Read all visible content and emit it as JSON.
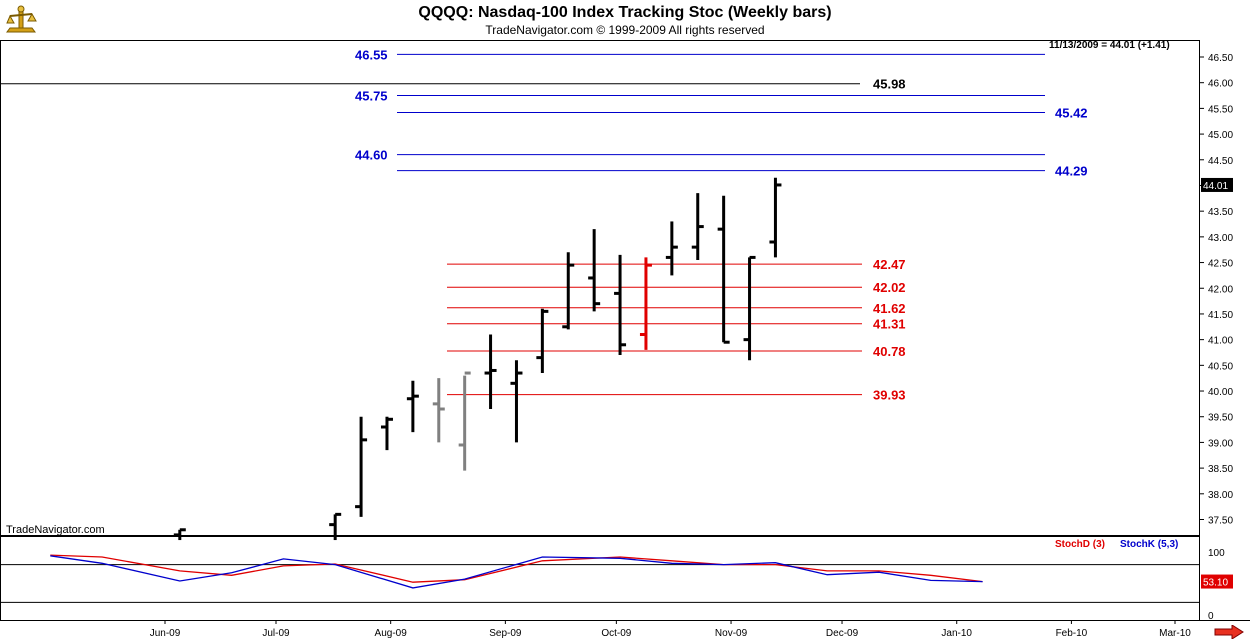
{
  "header": {
    "title": "QQQQ:  Nasdaq-100 Index Tracking Stoc  (Weekly bars)",
    "subtitle": "TradeNavigator.com © 1999-2009 All rights reserved",
    "last_quote": "11/13/2009 = 44.01 (+1.41)",
    "watermark": "TradeNavigator.com"
  },
  "chart_data": [
    {
      "type": "ohlc",
      "title": "QQQQ:  Nasdaq-100 Index Tracking Stoc  (Weekly bars)",
      "y_axis": {
        "ticks": [
          "46.50",
          "46.00",
          "45.50",
          "45.00",
          "44.50",
          "44.00",
          "43.50",
          "43.00",
          "42.50",
          "42.00",
          "41.50",
          "41.00",
          "40.50",
          "40.00",
          "39.50",
          "39.00",
          "38.50",
          "38.00",
          "37.50"
        ],
        "range": [
          37.1,
          46.9
        ],
        "current_value": "44.01"
      },
      "x_axis": {
        "ticks": [
          "Jun-09",
          "Jul-09",
          "Aug-09",
          "Sep-09",
          "Oct-09",
          "Nov-09",
          "Dec-09",
          "Jan-10",
          "Feb-10",
          "Mar-10"
        ]
      },
      "bars": [
        {
          "date": "2009-06-05",
          "open": 37.2,
          "high": 37.3,
          "low": 37.1,
          "close": 37.3,
          "color": "#000000"
        },
        {
          "date": "2009-07-17",
          "open": 37.4,
          "high": 37.6,
          "low": 37.1,
          "close": 37.6,
          "color": "#000000"
        },
        {
          "date": "2009-07-24",
          "open": 37.75,
          "high": 39.5,
          "low": 37.55,
          "close": 39.05,
          "color": "#000000"
        },
        {
          "date": "2009-07-31",
          "open": 39.3,
          "high": 39.5,
          "low": 38.85,
          "close": 39.45,
          "color": "#000000"
        },
        {
          "date": "2009-08-07",
          "open": 39.85,
          "high": 40.2,
          "low": 39.2,
          "close": 39.9,
          "color": "#000000"
        },
        {
          "date": "2009-08-14",
          "open": 39.75,
          "high": 40.25,
          "low": 39.0,
          "close": 39.65,
          "color": "#808080"
        },
        {
          "date": "2009-08-21",
          "open": 38.95,
          "high": 40.3,
          "low": 38.45,
          "close": 40.35,
          "color": "#808080"
        },
        {
          "date": "2009-08-28",
          "open": 40.35,
          "high": 41.1,
          "low": 39.65,
          "close": 40.4,
          "color": "#000000"
        },
        {
          "date": "2009-09-04",
          "open": 40.15,
          "high": 40.6,
          "low": 39.0,
          "close": 40.35,
          "color": "#000000"
        },
        {
          "date": "2009-09-11",
          "open": 40.65,
          "high": 41.6,
          "low": 40.35,
          "close": 41.55,
          "color": "#000000"
        },
        {
          "date": "2009-09-18",
          "open": 41.25,
          "high": 42.7,
          "low": 41.2,
          "close": 42.45,
          "color": "#000000"
        },
        {
          "date": "2009-09-25",
          "open": 42.2,
          "high": 43.15,
          "low": 41.55,
          "close": 41.7,
          "color": "#000000"
        },
        {
          "date": "2009-10-02",
          "open": 41.9,
          "high": 42.65,
          "low": 40.7,
          "close": 40.9,
          "color": "#000000"
        },
        {
          "date": "2009-10-09",
          "open": 41.1,
          "high": 42.6,
          "low": 40.8,
          "close": 42.45,
          "color": "#e00000"
        },
        {
          "date": "2009-10-16",
          "open": 42.6,
          "high": 43.3,
          "low": 42.25,
          "close": 42.8,
          "color": "#000000"
        },
        {
          "date": "2009-10-23",
          "open": 42.8,
          "high": 43.85,
          "low": 42.55,
          "close": 43.2,
          "color": "#000000"
        },
        {
          "date": "2009-10-30",
          "open": 43.15,
          "high": 43.8,
          "low": 40.95,
          "close": 40.95,
          "color": "#000000"
        },
        {
          "date": "2009-11-06",
          "open": 41.0,
          "high": 42.6,
          "low": 40.6,
          "close": 42.6,
          "color": "#000000"
        },
        {
          "date": "2009-11-13",
          "open": 42.9,
          "high": 44.15,
          "low": 42.6,
          "close": 44.01,
          "color": "#000000"
        }
      ],
      "levels": [
        {
          "value": 46.55,
          "label": "46.55",
          "color": "#0000cc"
        },
        {
          "value": 45.98,
          "label": "45.98",
          "color": "#000000"
        },
        {
          "value": 45.75,
          "label": "45.75",
          "color": "#0000cc"
        },
        {
          "value": 45.42,
          "label": "45.42",
          "color": "#0000cc"
        },
        {
          "value": 44.6,
          "label": "44.60",
          "color": "#0000cc"
        },
        {
          "value": 44.29,
          "label": "44.29",
          "color": "#0000cc"
        },
        {
          "value": 42.47,
          "label": "42.47",
          "color": "#e00000"
        },
        {
          "value": 42.02,
          "label": "42.02",
          "color": "#e00000"
        },
        {
          "value": 41.62,
          "label": "41.62",
          "color": "#e00000"
        },
        {
          "value": 41.31,
          "label": "41.31",
          "color": "#e00000"
        },
        {
          "value": 40.78,
          "label": "40.78",
          "color": "#e00000"
        },
        {
          "value": 39.93,
          "label": "39.93",
          "color": "#e00000"
        }
      ]
    },
    {
      "type": "line",
      "legend": [
        {
          "name": "StochD (3)",
          "color": "#e00000"
        },
        {
          "name": "StochK (5,3)",
          "color": "#0000cc"
        }
      ],
      "y_axis": {
        "ticks": [
          "100",
          "0"
        ],
        "range": [
          0,
          100
        ],
        "reference_lines": [
          80,
          20
        ],
        "current_value": "53.10"
      },
      "series": [
        {
          "name": "StochD (3)",
          "color": "#e00000",
          "points": [
            [
              "2009-05-01",
              95
            ],
            [
              "2009-05-15",
              92
            ],
            [
              "2009-06-05",
              70
            ],
            [
              "2009-06-19",
              63
            ],
            [
              "2009-07-03",
              78
            ],
            [
              "2009-07-17",
              81
            ],
            [
              "2009-08-07",
              52
            ],
            [
              "2009-08-21",
              56
            ],
            [
              "2009-09-11",
              86
            ],
            [
              "2009-10-02",
              92
            ],
            [
              "2009-10-16",
              86
            ],
            [
              "2009-10-30",
              80
            ],
            [
              "2009-11-13",
              80
            ],
            [
              "2009-11-27",
              70
            ],
            [
              "2009-12-11",
              70
            ],
            [
              "2009-12-25",
              63
            ],
            [
              "2010-01-08",
              53
            ]
          ]
        },
        {
          "name": "StochK (5,3)",
          "color": "#0000cc",
          "points": [
            [
              "2009-05-01",
              94
            ],
            [
              "2009-05-15",
              82
            ],
            [
              "2009-06-05",
              54
            ],
            [
              "2009-06-19",
              67
            ],
            [
              "2009-07-03",
              89
            ],
            [
              "2009-07-17",
              80
            ],
            [
              "2009-08-07",
              43
            ],
            [
              "2009-08-21",
              57
            ],
            [
              "2009-09-11",
              92
            ],
            [
              "2009-10-02",
              90
            ],
            [
              "2009-10-16",
              82
            ],
            [
              "2009-10-30",
              80
            ],
            [
              "2009-11-13",
              83
            ],
            [
              "2009-11-27",
              64
            ],
            [
              "2009-12-11",
              68
            ],
            [
              "2009-12-25",
              55
            ],
            [
              "2010-01-08",
              53
            ]
          ]
        }
      ]
    }
  ]
}
